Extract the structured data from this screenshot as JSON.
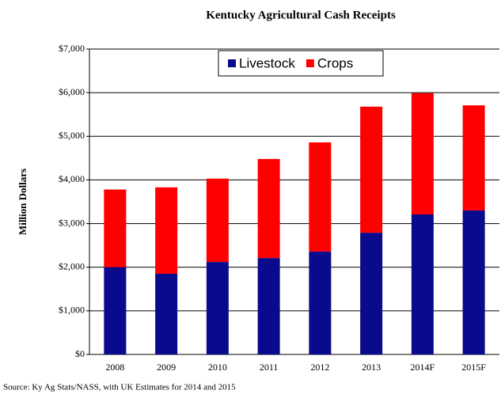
{
  "chart_data": {
    "type": "stacked-bar",
    "title": "Kentucky Agricultural Cash Receipts",
    "y_label": "Million Dollars",
    "source": "Source:  Ky Ag Stats/NASS, with UK Estimates for 2014 and 2015",
    "categories": [
      "2008",
      "2009",
      "2010",
      "2011",
      "2012",
      "2013",
      "2014F",
      "2015F"
    ],
    "series": [
      {
        "name": "Livestock",
        "color": "#0a0a8c",
        "values": [
          2000,
          1850,
          2120,
          2210,
          2360,
          2790,
          3210,
          3300
        ]
      },
      {
        "name": "Crops",
        "color": "#ff0000",
        "values": [
          1780,
          1980,
          1910,
          2270,
          2500,
          2890,
          2780,
          2410
        ]
      }
    ],
    "ylim": [
      0,
      7000
    ],
    "yticks": [
      {
        "value": 0,
        "label": "$0"
      },
      {
        "value": 1000,
        "label": "$1,000"
      },
      {
        "value": 2000,
        "label": "$2,000"
      },
      {
        "value": 3000,
        "label": "$3,000"
      },
      {
        "value": 4000,
        "label": "$4,000"
      },
      {
        "value": 5000,
        "label": "$5,000"
      },
      {
        "value": 6000,
        "label": "$6,000"
      },
      {
        "value": 7000,
        "label": "$7,000"
      }
    ],
    "grid": true,
    "legend": "top"
  }
}
